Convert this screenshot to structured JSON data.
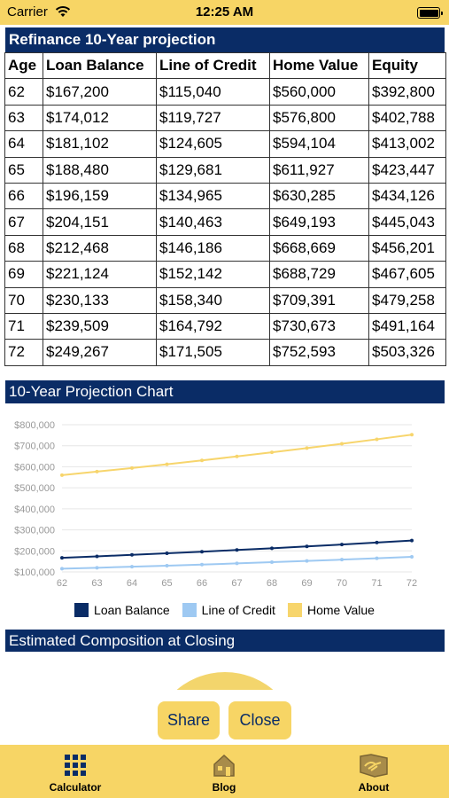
{
  "status_bar": {
    "carrier": "Carrier",
    "time": "12:25 AM"
  },
  "table": {
    "title": "Refinance 10-Year projection",
    "headers": [
      "Age",
      "Loan Balance",
      "Line of Credit",
      "Home Value",
      "Equity"
    ],
    "rows": [
      [
        "62",
        "$167,200",
        "$115,040",
        "$560,000",
        "$392,800"
      ],
      [
        "63",
        "$174,012",
        "$119,727",
        "$576,800",
        "$402,788"
      ],
      [
        "64",
        "$181,102",
        "$124,605",
        "$594,104",
        "$413,002"
      ],
      [
        "65",
        "$188,480",
        "$129,681",
        "$611,927",
        "$423,447"
      ],
      [
        "66",
        "$196,159",
        "$134,965",
        "$630,285",
        "$434,126"
      ],
      [
        "67",
        "$204,151",
        "$140,463",
        "$649,193",
        "$445,043"
      ],
      [
        "68",
        "$212,468",
        "$146,186",
        "$668,669",
        "$456,201"
      ],
      [
        "69",
        "$221,124",
        "$152,142",
        "$688,729",
        "$467,605"
      ],
      [
        "70",
        "$230,133",
        "$158,340",
        "$709,391",
        "$479,258"
      ],
      [
        "71",
        "$239,509",
        "$164,792",
        "$730,673",
        "$491,164"
      ],
      [
        "72",
        "$249,267",
        "$171,505",
        "$752,593",
        "$503,326"
      ]
    ]
  },
  "chart_title": "10-Year Projection Chart",
  "chart_data": {
    "type": "line",
    "x": [
      62,
      63,
      64,
      65,
      66,
      67,
      68,
      69,
      70,
      71,
      72
    ],
    "ylim": [
      100000,
      800000
    ],
    "y_ticks": [
      "$100,000",
      "$200,000",
      "$300,000",
      "$400,000",
      "$500,000",
      "$600,000",
      "$700,000",
      "$800,000"
    ],
    "grid": true,
    "legend_position": "bottom",
    "series": [
      {
        "name": "Loan Balance",
        "color": "#0a2c66",
        "values": [
          167200,
          174012,
          181102,
          188480,
          196159,
          204151,
          212468,
          221124,
          230133,
          239509,
          249267
        ]
      },
      {
        "name": "Line of Credit",
        "color": "#9ec9f2",
        "values": [
          115040,
          119727,
          124605,
          129681,
          134965,
          140463,
          146186,
          152142,
          158340,
          164792,
          171505
        ]
      },
      {
        "name": "Home Value",
        "color": "#f7d56c",
        "values": [
          560000,
          576800,
          594104,
          611927,
          630285,
          649193,
          668669,
          688729,
          709391,
          730673,
          752593
        ]
      }
    ]
  },
  "composition_title": "Estimated Composition at Closing",
  "buttons": {
    "share": "Share",
    "close": "Close"
  },
  "tabs": [
    {
      "label": "Calculator",
      "icon": "grid-icon"
    },
    {
      "label": "Blog",
      "icon": "house-icon"
    },
    {
      "label": "About",
      "icon": "handshake-icon"
    }
  ],
  "colors": {
    "header": "#0a2c66",
    "accent": "#f7d565"
  }
}
